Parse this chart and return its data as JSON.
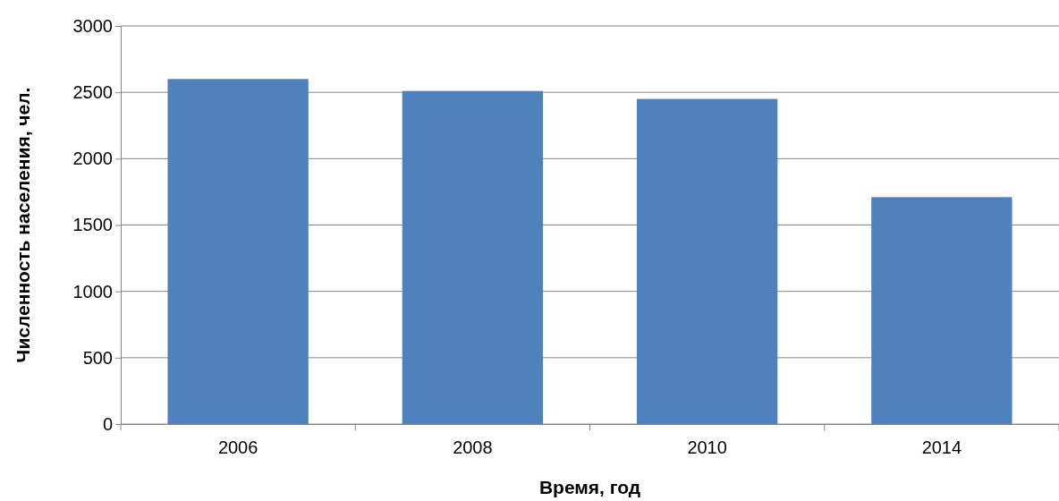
{
  "chart_data": {
    "type": "bar",
    "xlabel": "Время, год",
    "ylabel": "Численность населения, чел.",
    "categories": [
      "2006",
      "2008",
      "2010",
      "2014"
    ],
    "values": [
      2600,
      2510,
      2450,
      1710
    ],
    "color": "#4f81bd",
    "ylim": [
      0,
      3000
    ],
    "yticks": [
      0,
      500,
      1000,
      1500,
      2000,
      2500,
      3000
    ],
    "grid": "y"
  }
}
